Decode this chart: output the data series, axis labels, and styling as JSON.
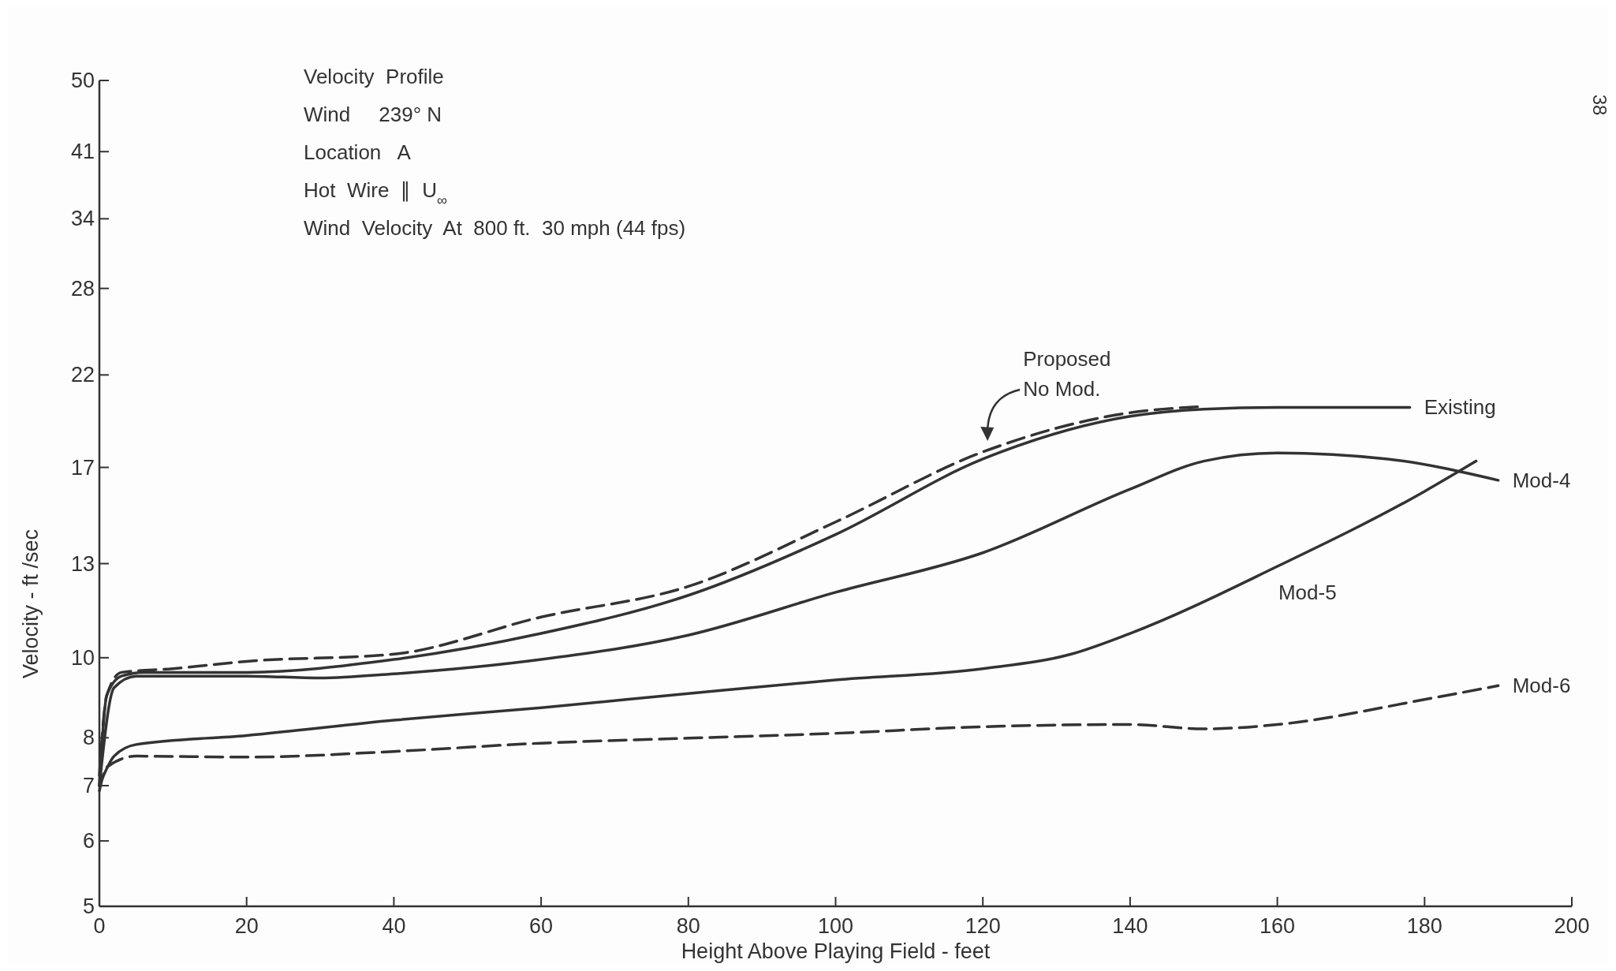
{
  "chart_data": {
    "type": "line",
    "xlabel": "Height  Above  Playing  Field  - feet",
    "ylabel": "Velocity - ft /sec",
    "annotations": [
      "Velocity  Profile",
      "Wind     239° N",
      "Location   A",
      "Hot  Wire  ∥  U$_{∞}$",
      "Wind  Velocity  At  800 ft.  30 mph (44 fps)",
      "38"
    ],
    "xlim": [
      0,
      200
    ],
    "xticks": [
      0,
      20,
      40,
      60,
      80,
      100,
      120,
      140,
      160,
      180,
      200
    ],
    "ylim": [
      5,
      50
    ],
    "yticks": [
      5,
      6,
      7,
      8,
      10,
      13,
      17,
      22,
      28,
      34,
      41,
      50
    ],
    "log": "y",
    "grid": false,
    "marker": "none",
    "series": [
      {
        "name": "Proposed No Mod.",
        "color": "#333333",
        "line_style": "dashed",
        "x": [
          0,
          1,
          3,
          10,
          20,
          40,
          60,
          80,
          100,
          120,
          140,
          150
        ],
        "values": [
          7.2,
          9.0,
          9.6,
          9.7,
          9.9,
          10.1,
          11.2,
          12.2,
          14.6,
          17.75,
          19.8,
          20.15
        ]
      },
      {
        "name": "Existing",
        "color": "#333333",
        "line_style": "solid",
        "x": [
          0,
          1,
          3,
          6,
          20,
          40,
          60,
          80,
          100,
          120,
          140,
          150,
          160,
          178
        ],
        "values": [
          7.0,
          9.0,
          9.5,
          9.6,
          9.6,
          9.95,
          10.7,
          11.9,
          14.1,
          17.4,
          19.6,
          20.0,
          20.1,
          20.1
        ]
      },
      {
        "name": "Mod-4",
        "color": "#333333",
        "line_style": "solid",
        "x": [
          0,
          2,
          5,
          20,
          30,
          40,
          60,
          80,
          100,
          120,
          140,
          150,
          160,
          175,
          190
        ],
        "values": [
          7.0,
          9.2,
          9.5,
          9.5,
          9.45,
          9.56,
          9.95,
          10.65,
          12.0,
          13.4,
          16.0,
          17.3,
          17.7,
          17.4,
          16.4
        ]
      },
      {
        "name": "Mod-5",
        "color": "#333333",
        "line_style": "solid",
        "x": [
          0,
          2,
          5,
          20,
          40,
          60,
          80,
          100,
          120,
          132,
          140,
          160,
          180,
          187
        ],
        "values": [
          7.0,
          7.6,
          7.85,
          8.05,
          8.4,
          8.7,
          9.05,
          9.4,
          9.7,
          10.1,
          10.7,
          12.9,
          15.9,
          17.3
        ]
      },
      {
        "name": "Mod-6",
        "color": "#333333",
        "line_style": "dashed",
        "x": [
          0,
          1,
          5,
          20,
          40,
          60,
          80,
          100,
          120,
          140,
          150,
          160,
          180,
          190
        ],
        "values": [
          6.9,
          7.37,
          7.6,
          7.58,
          7.7,
          7.88,
          7.99,
          8.1,
          8.25,
          8.3,
          8.2,
          8.3,
          8.9,
          9.25
        ]
      }
    ]
  }
}
